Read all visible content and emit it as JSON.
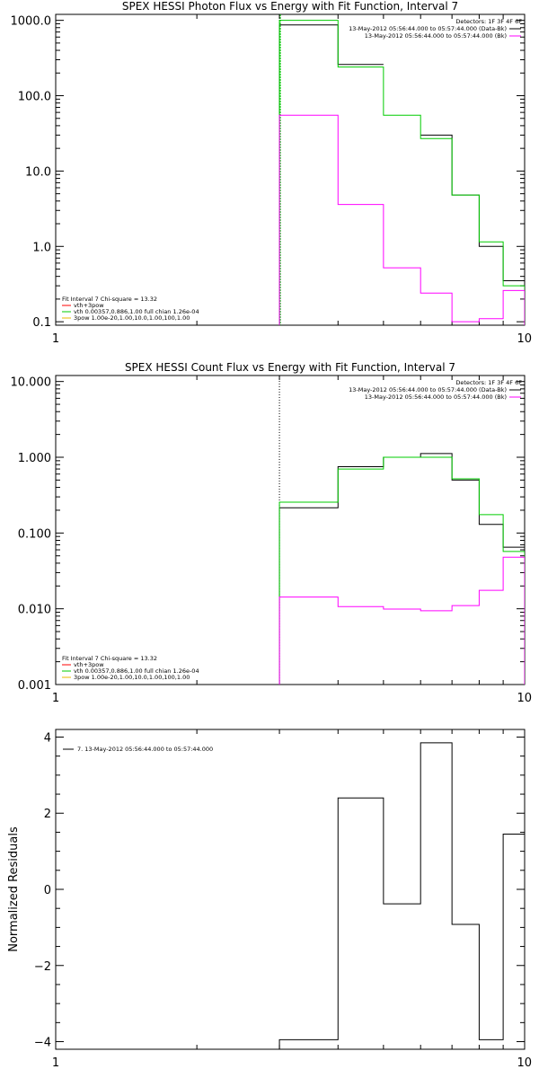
{
  "chart_data": [
    {
      "type": "step",
      "title": "SPEX HESSI Photon Flux vs Energy with Fit Function, Interval 7",
      "y_scale": "log",
      "x_scale": "log",
      "xlim": [
        1,
        10
      ],
      "ylim": [
        0.09,
        1200
      ],
      "y_ticks": [
        {
          "value": 0.1,
          "label": "0.1"
        },
        {
          "value": 1,
          "label": "1.0"
        },
        {
          "value": 10,
          "label": "10.0"
        },
        {
          "value": 100,
          "label": "100.0"
        },
        {
          "value": 1000,
          "label": "1000.0"
        }
      ],
      "x_ticks": [
        {
          "value": 1,
          "label": "1"
        },
        {
          "value": 10,
          "label": "10"
        }
      ],
      "legend_top_right": {
        "lines": [
          "Detectors: 1F 3F 4F 6F",
          "13-May-2012 05:56:44.000 to 05:57:44.000 (Data-Bk)",
          "13-May-2012 05:56:44.000 to 05:57:44.000 (Bk)"
        ],
        "colors": [
          "",
          "#000000",
          "#ff00ff"
        ]
      },
      "legend_bottom_left": {
        "lines": [
          "Fit Interval  7    Chi-square = 13.32",
          "vth+3pow",
          "vth 0.00357,0.886,1.00  full chian 1.26e-04",
          "3pow 1.00e-20,1.00,10.0,1.00,100,1.00"
        ],
        "colors": [
          "",
          "#ff0000",
          "#00cc00",
          "#e8b800"
        ]
      },
      "edges": [
        3.0,
        4.0,
        5.0,
        6.0,
        7.0,
        8.0,
        9.0,
        10.0
      ],
      "vline_x": 3.0,
      "vline_color": "#00cc00",
      "series": [
        {
          "color": "#000000",
          "values": [
            870,
            260,
            null,
            30,
            4.8,
            1.0,
            0.35
          ]
        },
        {
          "color": "#00cc00",
          "values": [
            1000,
            240,
            55,
            27,
            4.8,
            1.15,
            0.3
          ]
        },
        {
          "color": "#ff00ff",
          "values": [
            55,
            3.6,
            0.52,
            0.24,
            0.1,
            0.11,
            0.26
          ]
        }
      ]
    },
    {
      "type": "step",
      "title": "SPEX HESSI Count Flux vs Energy with Fit Function, Interval 7",
      "y_scale": "log",
      "x_scale": "log",
      "xlim": [
        1,
        10
      ],
      "ylim": [
        0.001,
        12
      ],
      "y_ticks": [
        {
          "value": 0.001,
          "label": "0.001"
        },
        {
          "value": 0.01,
          "label": "0.010"
        },
        {
          "value": 0.1,
          "label": "0.100"
        },
        {
          "value": 1,
          "label": "1.000"
        },
        {
          "value": 10,
          "label": "10.000"
        }
      ],
      "x_ticks": [
        {
          "value": 1,
          "label": "1"
        },
        {
          "value": 10,
          "label": "10"
        }
      ],
      "legend_top_right": {
        "lines": [
          "Detectors: 1F 3F 4F 6F",
          "13-May-2012 05:56:44.000 to 05:57:44.000 (Data-Bk)",
          "13-May-2012 05:56:44.000 to 05:57:44.000 (Bk)"
        ],
        "colors": [
          "",
          "#000000",
          "#ff00ff"
        ]
      },
      "legend_bottom_left": {
        "lines": [
          "Fit Interval  7    Chi-square = 13.32",
          "vth+3pow",
          "vth 0.00357,0.886,1.00  full chian 1.26e-04",
          "3pow 1.00e-20,1.00,10.0,1.00,100,1.00"
        ],
        "colors": [
          "",
          "#ff0000",
          "#00cc00",
          "#e8b800"
        ]
      },
      "edges": [
        3.0,
        4.0,
        5.0,
        6.0,
        7.0,
        8.0,
        9.0,
        10.0
      ],
      "vline_x": 3.0,
      "vline_color": "#000000",
      "series": [
        {
          "color": "#000000",
          "values": [
            0.215,
            0.75,
            1.0,
            1.12,
            0.5,
            0.13,
            0.065
          ]
        },
        {
          "color": "#00cc00",
          "values": [
            0.255,
            0.7,
            1.0,
            1.0,
            0.52,
            0.175,
            0.057
          ]
        },
        {
          "color": "#ff00ff",
          "values": [
            0.0143,
            0.0107,
            0.0099,
            0.0094,
            0.011,
            0.0175,
            0.048
          ]
        }
      ]
    },
    {
      "type": "step",
      "title": "",
      "ylabel": "Normalized Residuals",
      "y_scale": "linear",
      "x_scale": "log",
      "xlim": [
        1,
        10
      ],
      "ylim": [
        -4.2,
        4.2
      ],
      "y_ticks": [
        {
          "value": -4,
          "label": "−4"
        },
        {
          "value": -2,
          "label": "−2"
        },
        {
          "value": 0,
          "label": "0"
        },
        {
          "value": 2,
          "label": "2"
        },
        {
          "value": 4,
          "label": "4"
        }
      ],
      "x_ticks": [
        {
          "value": 1,
          "label": "1"
        },
        {
          "value": 10,
          "label": "10"
        }
      ],
      "legend_top_left": {
        "lines": [
          "7. 13-May-2012 05:56:44.000 to 05:57:44.000"
        ],
        "colors": [
          "#000000"
        ]
      },
      "edges": [
        3.0,
        4.0,
        5.0,
        6.0,
        7.0,
        8.0,
        9.0,
        10.0
      ],
      "series": [
        {
          "color": "#000000",
          "values": [
            -3.95,
            2.4,
            -0.38,
            3.85,
            -0.92,
            -3.95,
            1.45
          ]
        }
      ]
    }
  ]
}
